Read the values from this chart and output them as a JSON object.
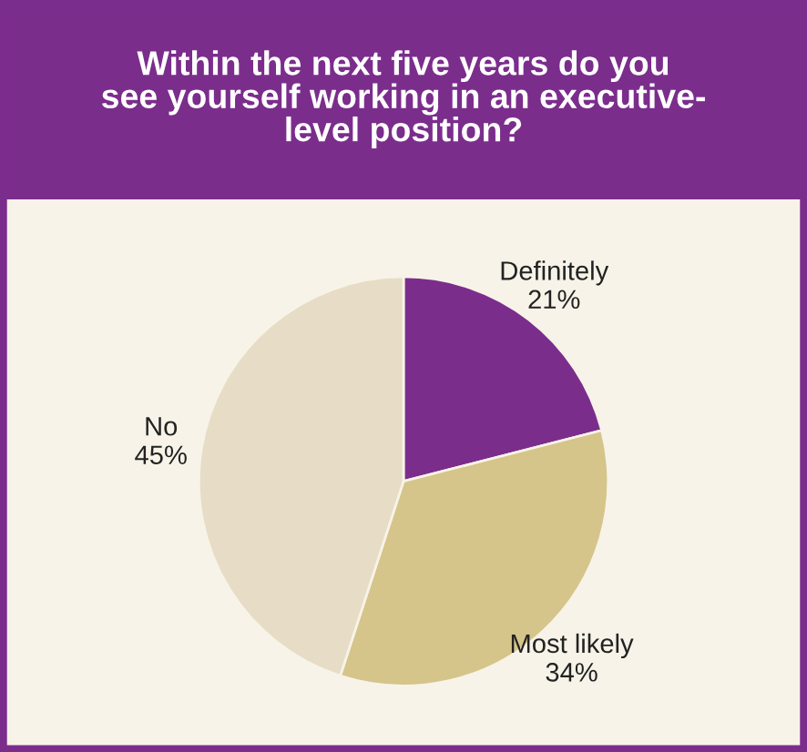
{
  "chart_data": {
    "type": "pie",
    "title": "Within the next five years do you\nsee yourself working in an executive-\nlevel position?",
    "categories": [
      "Definitely",
      "Most likely",
      "No"
    ],
    "values": [
      21,
      34,
      45
    ],
    "colors": [
      "#7b2d8c",
      "#d5c58a",
      "#e7dcc5"
    ],
    "value_labels": [
      "21%",
      "34%",
      "45%"
    ]
  }
}
